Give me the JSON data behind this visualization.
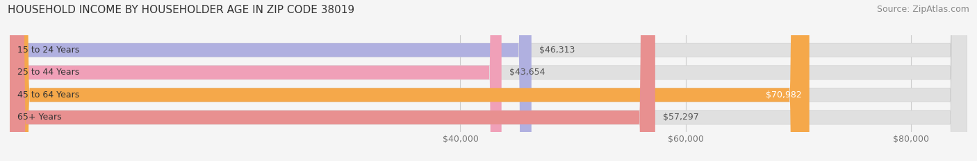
{
  "title": "HOUSEHOLD INCOME BY HOUSEHOLDER AGE IN ZIP CODE 38019",
  "source": "Source: ZipAtlas.com",
  "categories": [
    "15 to 24 Years",
    "25 to 44 Years",
    "45 to 64 Years",
    "65+ Years"
  ],
  "values": [
    46313,
    43654,
    70982,
    57297
  ],
  "bar_colors": [
    "#b0b0e0",
    "#f0a0b8",
    "#f5a84a",
    "#e89090"
  ],
  "bar_labels": [
    "$46,313",
    "$43,654",
    "$70,982",
    "$57,297"
  ],
  "label_inside": [
    false,
    false,
    true,
    false
  ],
  "xlim": [
    0,
    85000
  ],
  "x_max_bg": 85000,
  "xticks": [
    40000,
    60000,
    80000
  ],
  "xticklabels": [
    "$40,000",
    "$60,000",
    "$80,000"
  ],
  "background_color": "#f5f5f5",
  "bar_bg_color": "#e0e0e0",
  "title_fontsize": 11,
  "source_fontsize": 9,
  "tick_fontsize": 9,
  "label_fontsize": 9,
  "category_fontsize": 9,
  "bar_height": 0.62,
  "grid_color": "#cccccc"
}
